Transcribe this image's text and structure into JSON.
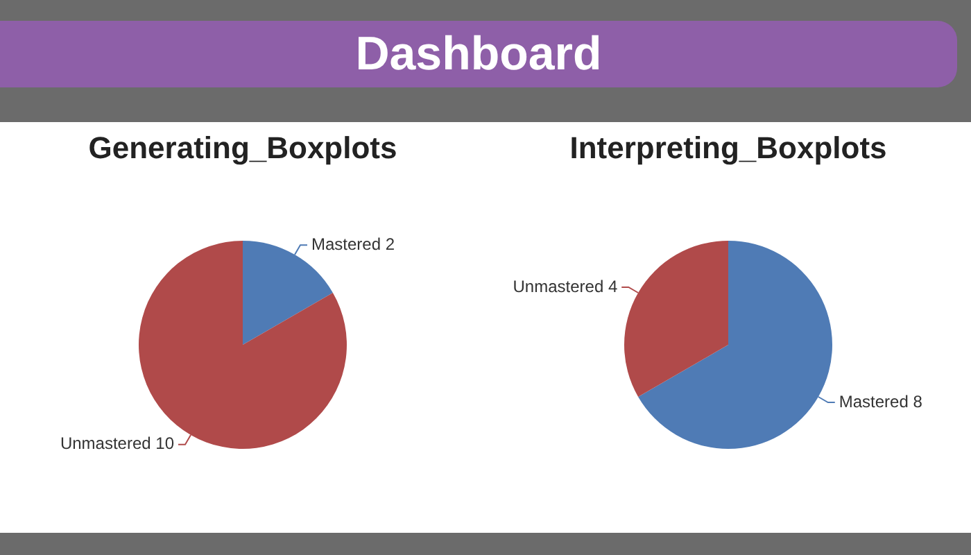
{
  "chart_data": [
    {
      "type": "other",
      "title": "Dashboard"
    },
    {
      "type": "pie",
      "title": "Generating_Boxplots",
      "categories": [
        "Mastered",
        "Unmastered"
      ],
      "values": [
        2,
        10
      ],
      "colors": [
        "#4f7bb5",
        "#b04a4a"
      ],
      "data_labels": true
    },
    {
      "type": "pie",
      "title": "Interpreting_Boxplots",
      "categories": [
        "Mastered",
        "Unmastered"
      ],
      "values": [
        8,
        4
      ],
      "colors": [
        "#4f7bb5",
        "#b04a4a"
      ],
      "data_labels": true
    }
  ]
}
